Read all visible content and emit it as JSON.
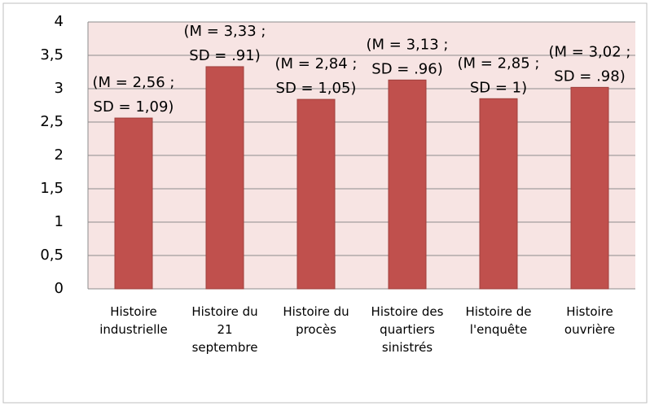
{
  "chart_data": {
    "type": "bar",
    "categories": [
      "Histoire\nindustrielle",
      "Histoire du\n21\nseptembre",
      "Histoire du\nprocès",
      "Histoire des\nquartiers\nsinistrés",
      "Histoire de\nl'enquête",
      "Histoire\nouvrière"
    ],
    "values": [
      2.56,
      3.33,
      2.84,
      3.13,
      2.85,
      3.02
    ],
    "value_labels": [
      "(M = 2,56 ;\nSD = 1,09)",
      "(M = 3,33 ;\nSD = .91)",
      "(M = 2,84 ;\nSD = 1,05)",
      "(M = 3,13 ;\nSD = .96)",
      "(M = 2,85 ;\nSD = 1)",
      "(M = 3,02 ;\nSD = .98)"
    ],
    "color": "#c0504d",
    "ylim": [
      0,
      4
    ],
    "yticks": [
      0,
      {
        "value": 0.5,
        "label": "0,5"
      },
      1,
      {
        "value": 1.5,
        "label": "1,5"
      },
      2,
      {
        "value": 2.5,
        "label": "2,5"
      },
      3,
      {
        "value": 3.5,
        "label": "3,5"
      },
      4
    ],
    "grid": true
  }
}
